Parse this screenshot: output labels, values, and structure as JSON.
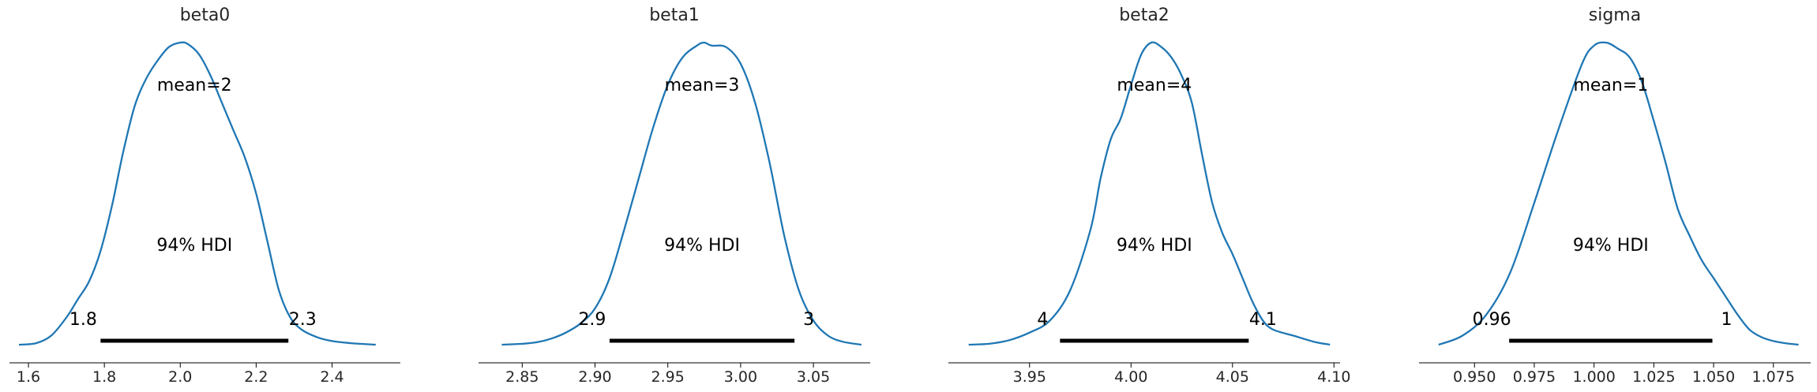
{
  "chart_data": [
    {
      "type": "line",
      "title": "beta0",
      "mean_label": "mean=2",
      "hdi_label": "94% HDI",
      "hdi_low_label": "1.8",
      "hdi_high_label": "2.3",
      "hdi": [
        1.79,
        2.285
      ],
      "xlim": [
        1.55,
        2.58
      ],
      "xticks": [
        "1.6",
        "1.8",
        "2.0",
        "2.2",
        "2.4"
      ],
      "xtick_values": [
        1.6,
        1.8,
        2.0,
        2.2,
        2.4
      ],
      "color": "#1f77b4",
      "density": {
        "x": [
          1.575,
          1.62,
          1.66,
          1.7,
          1.73,
          1.76,
          1.79,
          1.82,
          1.85,
          1.88,
          1.91,
          1.94,
          1.97,
          2.0,
          2.02,
          2.05,
          2.08,
          2.11,
          2.14,
          2.17,
          2.2,
          2.23,
          2.26,
          2.29,
          2.32,
          2.36,
          2.4,
          2.45,
          2.515
        ],
        "y": [
          0.0,
          0.005,
          0.03,
          0.09,
          0.15,
          0.21,
          0.31,
          0.46,
          0.64,
          0.79,
          0.88,
          0.94,
          0.985,
          1.0,
          0.995,
          0.96,
          0.89,
          0.8,
          0.71,
          0.62,
          0.5,
          0.34,
          0.18,
          0.09,
          0.05,
          0.025,
          0.012,
          0.005,
          0.0
        ]
      }
    },
    {
      "type": "line",
      "title": "beta1",
      "mean_label": "mean=3",
      "hdi_label": "94% HDI",
      "hdi_low_label": "2.9",
      "hdi_high_label": "3",
      "hdi": [
        2.91,
        3.037
      ],
      "xlim": [
        2.82,
        3.089
      ],
      "xticks": [
        "2.85",
        "2.90",
        "2.95",
        "3.00",
        "3.05"
      ],
      "xtick_values": [
        2.85,
        2.9,
        2.95,
        3.0,
        3.05
      ],
      "color": "#1f77b4",
      "density": {
        "x": [
          2.836,
          2.85,
          2.86,
          2.87,
          2.88,
          2.89,
          2.9,
          2.91,
          2.92,
          2.93,
          2.94,
          2.95,
          2.96,
          2.97,
          2.975,
          2.98,
          2.99,
          3.0,
          3.01,
          3.02,
          3.03,
          3.04,
          3.05,
          3.06,
          3.07,
          3.083
        ],
        "y": [
          0.0,
          0.003,
          0.008,
          0.02,
          0.04,
          0.07,
          0.12,
          0.22,
          0.38,
          0.55,
          0.72,
          0.86,
          0.95,
          0.99,
          1.0,
          0.99,
          0.985,
          0.93,
          0.8,
          0.6,
          0.36,
          0.18,
          0.08,
          0.03,
          0.01,
          0.0
        ]
      }
    },
    {
      "type": "line",
      "title": "beta2",
      "mean_label": "mean=4",
      "hdi_label": "94% HDI",
      "hdi_low_label": "4",
      "hdi_high_label": "4.1",
      "hdi": [
        3.965,
        4.058
      ],
      "xlim": [
        3.91,
        4.103
      ],
      "xticks": [
        "3.95",
        "4.00",
        "4.05",
        "4.10"
      ],
      "xtick_values": [
        3.95,
        4.0,
        4.05,
        4.1
      ],
      "color": "#1f77b4",
      "density": {
        "x": [
          3.92,
          3.93,
          3.94,
          3.95,
          3.96,
          3.97,
          3.98,
          3.985,
          3.99,
          3.995,
          4.0,
          4.005,
          4.01,
          4.015,
          4.02,
          4.025,
          4.03,
          4.035,
          4.04,
          4.045,
          4.05,
          4.055,
          4.06,
          4.065,
          4.07,
          4.08,
          4.09,
          4.098
        ],
        "y": [
          0.0,
          0.003,
          0.015,
          0.04,
          0.08,
          0.18,
          0.38,
          0.55,
          0.68,
          0.75,
          0.86,
          0.96,
          1.0,
          0.985,
          0.95,
          0.89,
          0.8,
          0.63,
          0.47,
          0.37,
          0.3,
          0.22,
          0.14,
          0.08,
          0.05,
          0.03,
          0.01,
          0.0
        ]
      }
    },
    {
      "type": "line",
      "title": "sigma",
      "mean_label": "mean=1",
      "hdi_label": "94% HDI",
      "hdi_low_label": "0.96",
      "hdi_high_label": "1",
      "hdi": [
        0.9645,
        1.0495
      ],
      "xlim": [
        0.9268,
        1.0906
      ],
      "xticks": [
        "0.950",
        "0.975",
        "1.000",
        "1.025",
        "1.050",
        "1.075"
      ],
      "xtick_values": [
        0.95,
        0.975,
        1.0,
        1.025,
        1.05,
        1.075
      ],
      "color": "#1f77b4",
      "density": {
        "x": [
          0.935,
          0.945,
          0.955,
          0.965,
          0.975,
          0.985,
          0.995,
          1.0,
          1.005,
          1.01,
          1.015,
          1.02,
          1.025,
          1.03,
          1.035,
          1.04,
          1.045,
          1.05,
          1.055,
          1.06,
          1.065,
          1.07,
          1.075,
          1.08,
          1.0855
        ],
        "y": [
          0.0,
          0.03,
          0.1,
          0.24,
          0.47,
          0.71,
          0.93,
          0.99,
          1.0,
          0.98,
          0.95,
          0.87,
          0.74,
          0.6,
          0.45,
          0.36,
          0.28,
          0.22,
          0.16,
          0.1,
          0.05,
          0.025,
          0.012,
          0.005,
          0.0
        ]
      }
    }
  ]
}
